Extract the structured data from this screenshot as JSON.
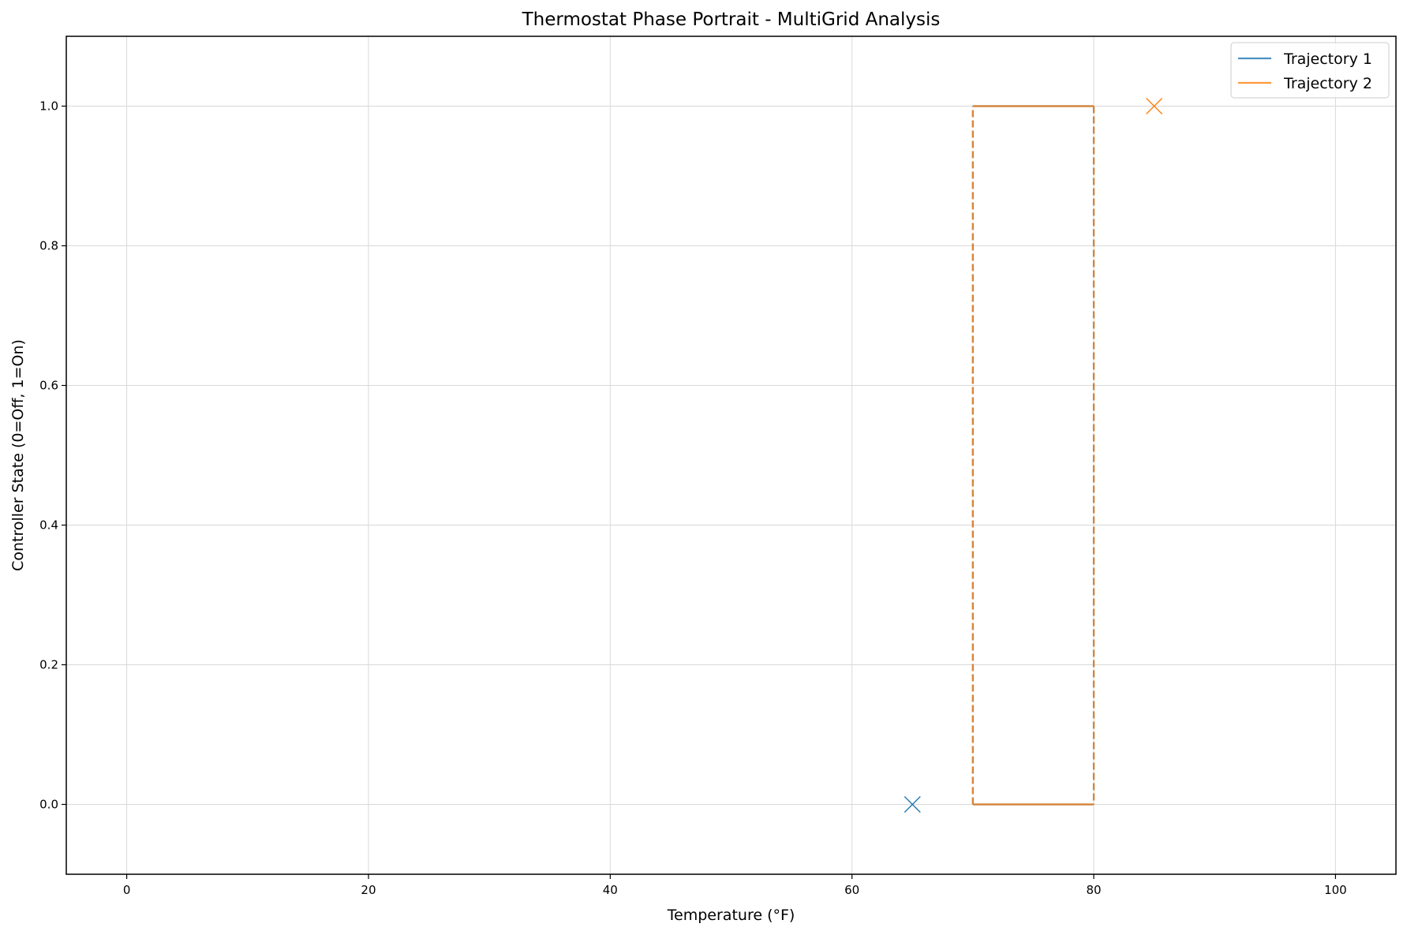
{
  "chart_data": {
    "type": "line",
    "title": "Thermostat Phase Portrait - MultiGrid Analysis",
    "xlabel": "Temperature (°F)",
    "ylabel": "Controller State (0=Off, 1=On)",
    "xlim": [
      -5,
      105
    ],
    "ylim": [
      -0.1,
      1.1
    ],
    "xticks": [
      0,
      20,
      40,
      60,
      80,
      100
    ],
    "yticks": [
      0.0,
      0.2,
      0.4,
      0.6,
      0.8,
      1.0
    ],
    "xtick_labels": [
      "0",
      "20",
      "40",
      "60",
      "80",
      "100"
    ],
    "ytick_labels": [
      "0.0",
      "0.2",
      "0.4",
      "0.6",
      "0.8",
      "1.0"
    ],
    "grid": true,
    "legend_position": "top-right",
    "series": [
      {
        "name": "Trajectory 1",
        "color": "#1f77b4",
        "solid": [
          [
            [
              70,
              0
            ],
            [
              80,
              0
            ]
          ],
          [
            [
              70,
              1
            ],
            [
              80,
              1
            ]
          ]
        ],
        "dashed": [
          [
            [
              70,
              0
            ],
            [
              70,
              1
            ]
          ],
          [
            [
              80,
              1
            ],
            [
              80,
              0
            ]
          ]
        ],
        "end_marker": [
          65,
          0
        ]
      },
      {
        "name": "Trajectory 2",
        "color": "#ff7f0e",
        "solid": [
          [
            [
              70,
              0
            ],
            [
              80,
              0
            ]
          ],
          [
            [
              70,
              1
            ],
            [
              80,
              1
            ]
          ]
        ],
        "dashed": [
          [
            [
              70,
              0
            ],
            [
              70,
              1
            ]
          ],
          [
            [
              80,
              1
            ],
            [
              80,
              0
            ]
          ]
        ],
        "end_marker": [
          85,
          1
        ]
      }
    ]
  }
}
